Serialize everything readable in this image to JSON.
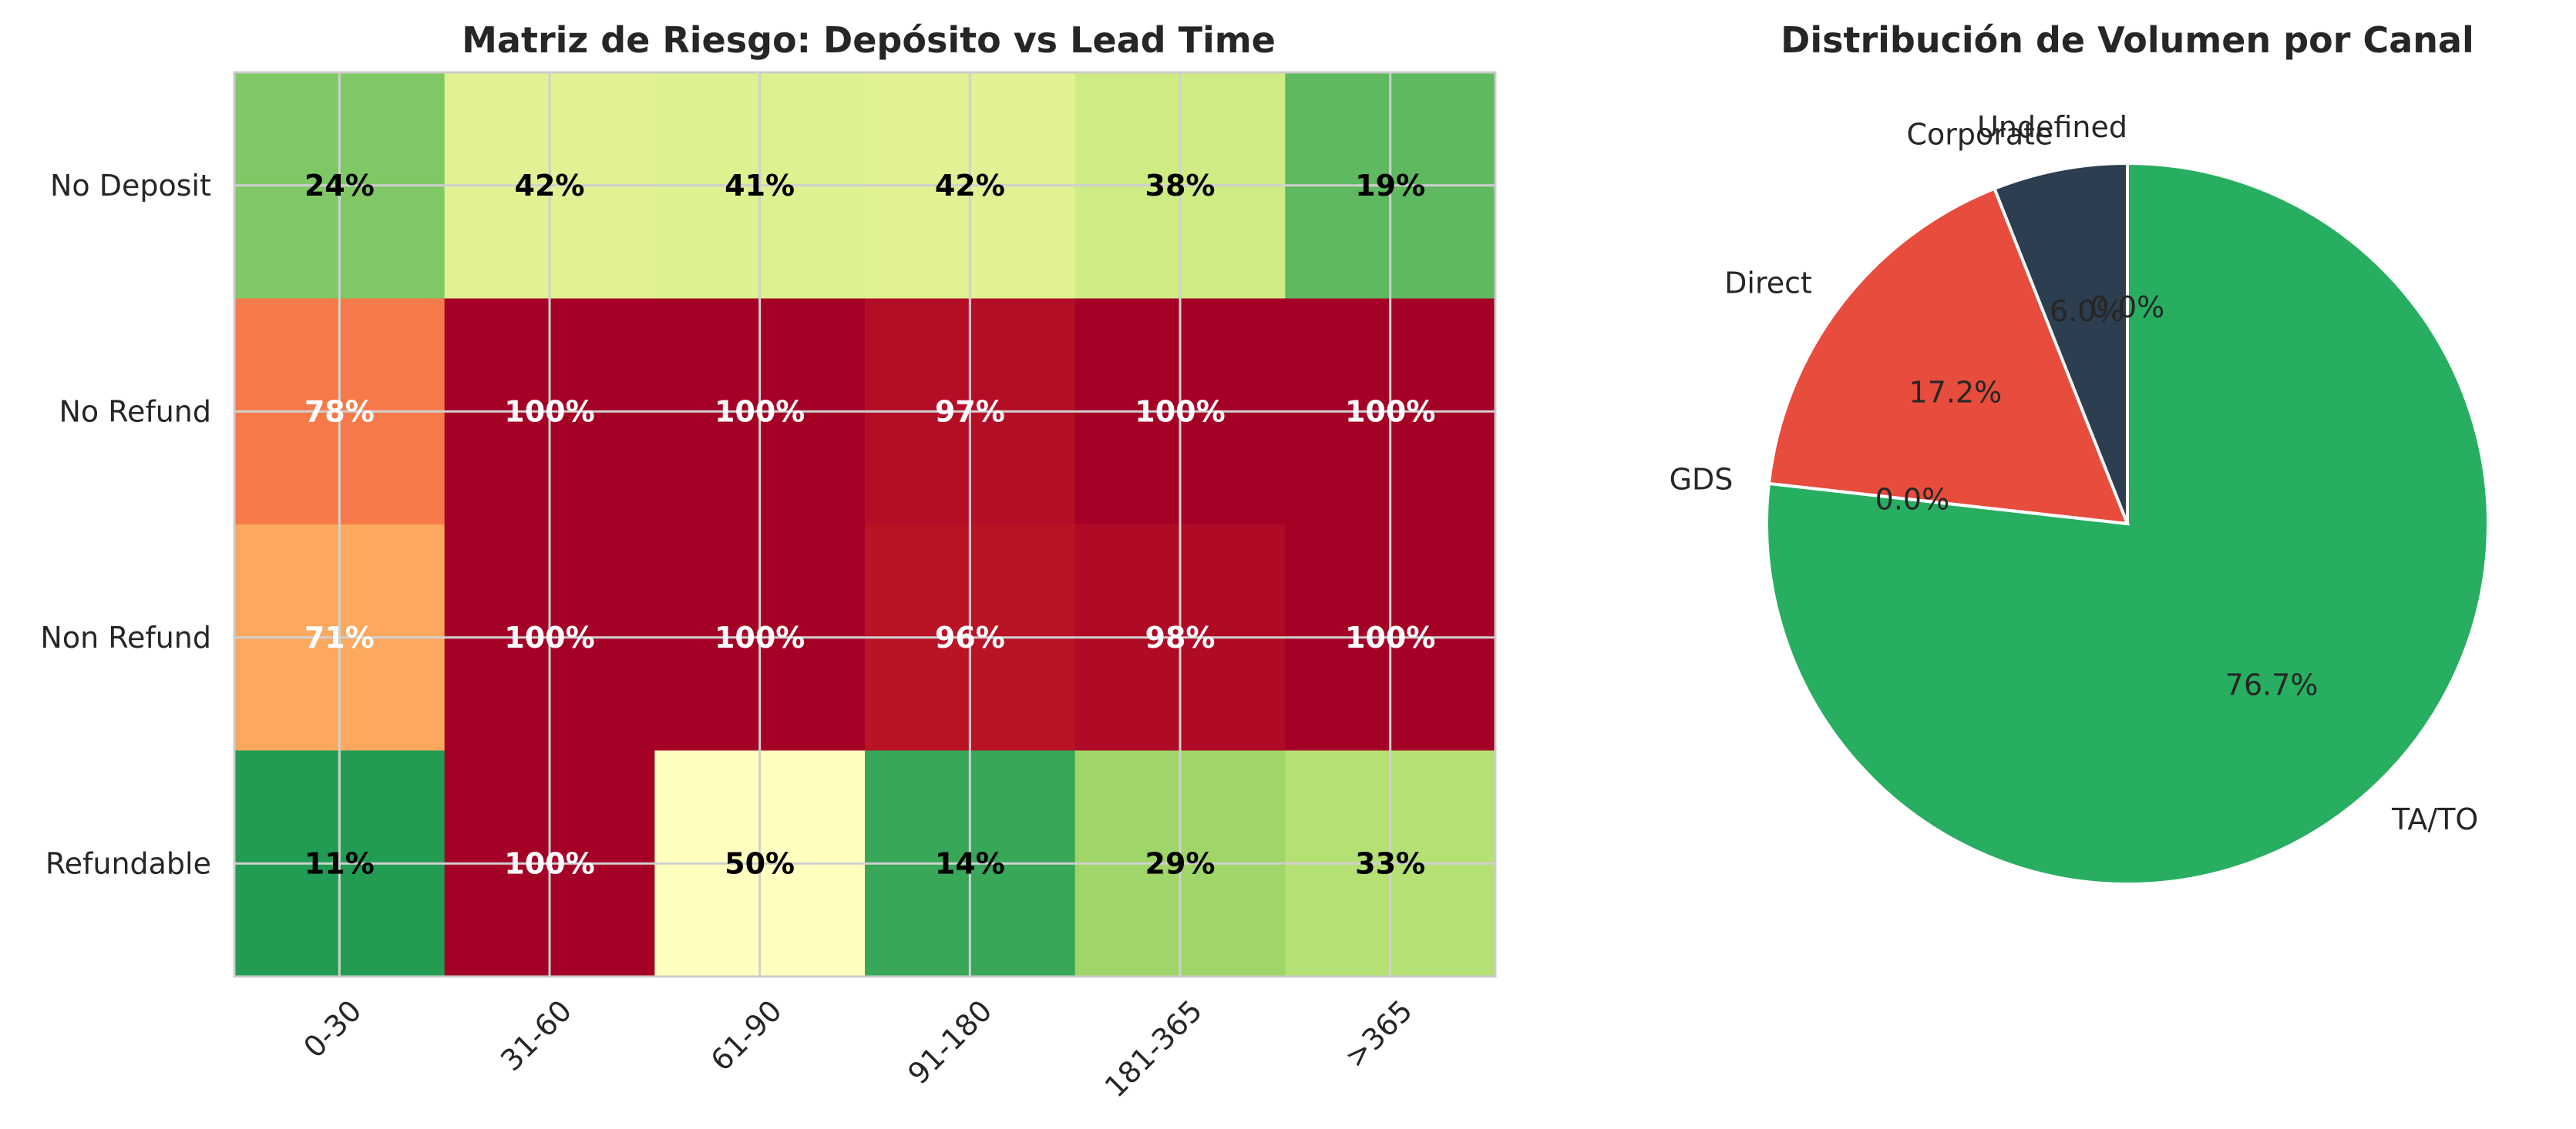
{
  "chart_data": [
    {
      "type": "heatmap",
      "title": "Matriz de Riesgo: Depósito vs Lead Time",
      "xlabel": "",
      "ylabel": "",
      "x_categories": [
        "0-30",
        "31-60",
        "61-90",
        "91-180",
        "181-365",
        ">365"
      ],
      "y_categories": [
        "No Deposit",
        "No Refund",
        "Non Refund",
        "Refundable"
      ],
      "values": [
        [
          24,
          42,
          41,
          42,
          38,
          19
        ],
        [
          78,
          100,
          100,
          97,
          100,
          100
        ],
        [
          71,
          100,
          100,
          96,
          98,
          100
        ],
        [
          11,
          100,
          50,
          14,
          29,
          33
        ]
      ],
      "cell_labels": [
        [
          "24%",
          "42%",
          "41%",
          "42%",
          "38%",
          "19%"
        ],
        [
          "78%",
          "100%",
          "100%",
          "97%",
          "100%",
          "100%"
        ],
        [
          "71%",
          "100%",
          "100%",
          "96%",
          "98%",
          "100%"
        ],
        [
          "11%",
          "100%",
          "50%",
          "14%",
          "29%",
          "33%"
        ]
      ],
      "colormap": "RdYlGn_r",
      "grid": true
    },
    {
      "type": "pie",
      "title": "Distribución de Volumen por Canal",
      "labels": [
        "TA/TO",
        "GDS",
        "Direct",
        "Corporate",
        "Undefined"
      ],
      "values": [
        76.7,
        0.0,
        17.2,
        6.0,
        0.0
      ],
      "pct_labels": [
        "76.7%",
        "0.0%",
        "17.2%",
        "6.0%",
        "0.0%"
      ],
      "colors": [
        "#27ae60",
        "#3498db",
        "#e74c3c",
        "#2c3e50",
        "#9b59b6"
      ],
      "start_angle": 90,
      "direction": "clockwise"
    }
  ]
}
